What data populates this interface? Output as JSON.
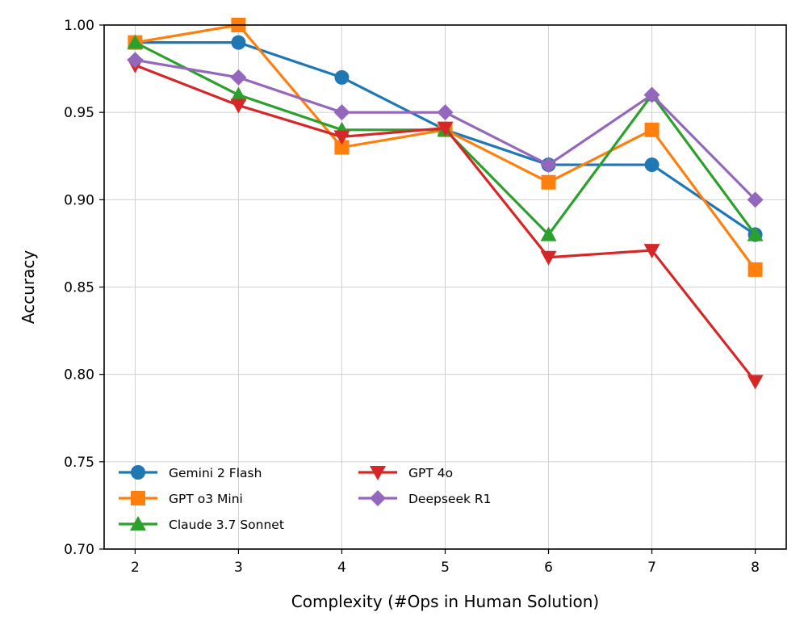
{
  "chart_data": {
    "type": "line",
    "title": "",
    "xlabel": "Complexity (#Ops in Human Solution)",
    "ylabel": "Accuracy",
    "x": [
      2,
      3,
      4,
      5,
      6,
      7,
      8
    ],
    "xlim": [
      1.7,
      8.3
    ],
    "ylim": [
      0.7,
      1.0
    ],
    "xticks": [
      2,
      3,
      4,
      5,
      6,
      7,
      8
    ],
    "yticks": [
      "0.70",
      "0.75",
      "0.80",
      "0.85",
      "0.90",
      "0.95",
      "1.00"
    ],
    "grid": true,
    "legend_position": "lower-left",
    "series": [
      {
        "name": "Gemini 2 Flash",
        "color": "#1f77b4",
        "marker": "circle",
        "values": [
          0.99,
          0.99,
          0.97,
          0.94,
          0.92,
          0.92,
          0.88
        ]
      },
      {
        "name": "GPT o3 Mini",
        "color": "#ff7f0e",
        "marker": "square",
        "values": [
          0.99,
          1.0,
          0.93,
          0.94,
          0.91,
          0.94,
          0.86
        ]
      },
      {
        "name": "Claude 3.7 Sonnet",
        "color": "#2ca02c",
        "marker": "triangle-up",
        "values": [
          0.99,
          0.96,
          0.94,
          0.94,
          0.88,
          0.96,
          0.88
        ]
      },
      {
        "name": "GPT 4o",
        "color": "#d62728",
        "marker": "triangle-down",
        "values": [
          0.977,
          0.954,
          0.936,
          0.941,
          0.867,
          0.871,
          0.796
        ]
      },
      {
        "name": "Deepseek R1",
        "color": "#9467bd",
        "marker": "diamond",
        "values": [
          0.98,
          0.97,
          0.95,
          0.95,
          0.92,
          0.96,
          0.9
        ]
      }
    ]
  }
}
